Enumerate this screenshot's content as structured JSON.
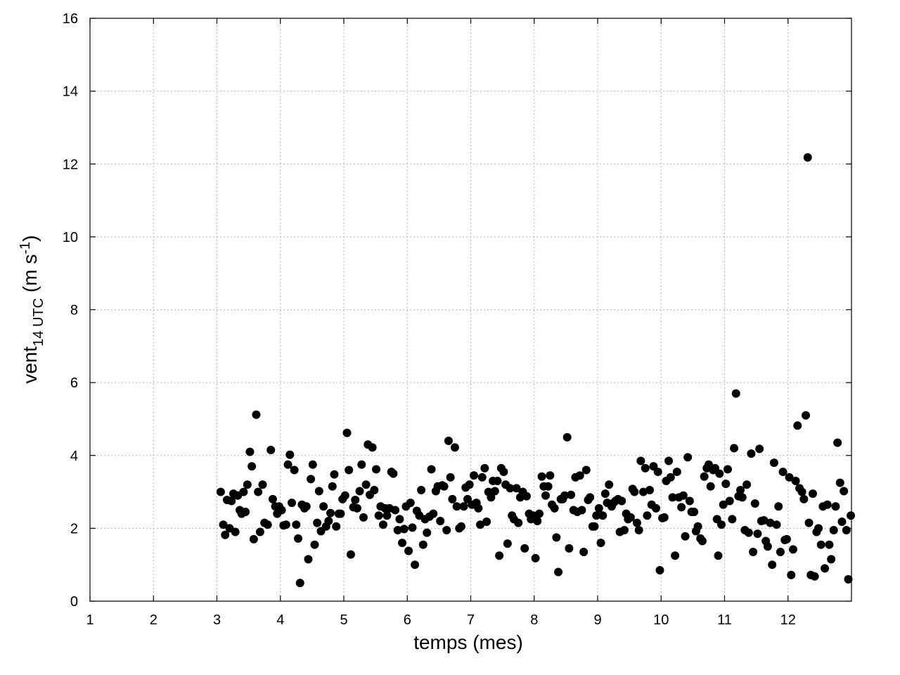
{
  "chart_data": {
    "type": "scatter",
    "xlabel": "temps (mes)",
    "ylabel": {
      "base": "vent",
      "subscript": "14 UTC",
      "unit_open": " (m s",
      "unit_sup": "-1",
      "unit_close": ")"
    },
    "xlim": [
      1,
      13
    ],
    "ylim": [
      0,
      16
    ],
    "xticks": [
      1,
      2,
      3,
      4,
      5,
      6,
      7,
      8,
      9,
      10,
      11,
      12
    ],
    "yticks": [
      0,
      2,
      4,
      6,
      8,
      10,
      12,
      14,
      16
    ],
    "grid": true,
    "marker_color": "#000000",
    "series": [
      {
        "points": [
          [
            3.06,
            3.0
          ],
          [
            3.1,
            2.1
          ],
          [
            3.13,
            1.82
          ],
          [
            3.16,
            2.78
          ],
          [
            3.2,
            2.0
          ],
          [
            3.23,
            2.75
          ],
          [
            3.26,
            2.95
          ],
          [
            3.29,
            1.9
          ],
          [
            3.33,
            2.9
          ],
          [
            3.36,
            2.5
          ],
          [
            3.39,
            2.4
          ],
          [
            3.42,
            3.0
          ],
          [
            3.45,
            2.45
          ],
          [
            3.48,
            3.2
          ],
          [
            3.52,
            4.1
          ],
          [
            3.55,
            3.7
          ],
          [
            3.58,
            1.7
          ],
          [
            3.62,
            5.12
          ],
          [
            3.65,
            3.0
          ],
          [
            3.68,
            1.9
          ],
          [
            3.72,
            3.2
          ],
          [
            3.75,
            2.15
          ],
          [
            3.8,
            2.1
          ],
          [
            3.85,
            4.15
          ],
          [
            3.88,
            2.8
          ],
          [
            3.92,
            2.6
          ],
          [
            3.95,
            2.4
          ],
          [
            3.98,
            2.6
          ],
          [
            4.02,
            2.5
          ],
          [
            4.05,
            2.08
          ],
          [
            4.09,
            2.1
          ],
          [
            4.12,
            3.75
          ],
          [
            4.15,
            4.02
          ],
          [
            4.18,
            2.7
          ],
          [
            4.22,
            3.6
          ],
          [
            4.25,
            2.1
          ],
          [
            4.28,
            1.72
          ],
          [
            4.31,
            0.5
          ],
          [
            4.34,
            2.65
          ],
          [
            4.38,
            2.55
          ],
          [
            4.41,
            2.6
          ],
          [
            4.44,
            1.15
          ],
          [
            4.48,
            3.35
          ],
          [
            4.51,
            3.75
          ],
          [
            4.54,
            1.55
          ],
          [
            4.58,
            2.15
          ],
          [
            4.61,
            3.02
          ],
          [
            4.64,
            1.92
          ],
          [
            4.68,
            2.6
          ],
          [
            4.72,
            2.05
          ],
          [
            4.76,
            2.2
          ],
          [
            4.79,
            2.42
          ],
          [
            4.82,
            3.15
          ],
          [
            4.85,
            3.48
          ],
          [
            4.88,
            2.05
          ],
          [
            4.92,
            2.4
          ],
          [
            4.95,
            2.4
          ],
          [
            4.98,
            2.8
          ],
          [
            5.02,
            2.9
          ],
          [
            5.05,
            4.62
          ],
          [
            5.08,
            3.6
          ],
          [
            5.11,
            1.28
          ],
          [
            5.15,
            2.58
          ],
          [
            5.18,
            2.78
          ],
          [
            5.21,
            2.55
          ],
          [
            5.25,
            3.02
          ],
          [
            5.28,
            3.75
          ],
          [
            5.31,
            2.3
          ],
          [
            5.35,
            3.2
          ],
          [
            5.38,
            4.3
          ],
          [
            5.41,
            2.92
          ],
          [
            5.45,
            4.22
          ],
          [
            5.48,
            3.05
          ],
          [
            5.51,
            3.62
          ],
          [
            5.55,
            2.35
          ],
          [
            5.58,
            2.6
          ],
          [
            5.62,
            2.1
          ],
          [
            5.65,
            2.55
          ],
          [
            5.68,
            2.35
          ],
          [
            5.72,
            2.55
          ],
          [
            5.75,
            3.55
          ],
          [
            5.78,
            3.5
          ],
          [
            5.81,
            2.5
          ],
          [
            5.85,
            1.95
          ],
          [
            5.88,
            2.25
          ],
          [
            5.92,
            1.6
          ],
          [
            5.95,
            1.98
          ],
          [
            5.98,
            2.6
          ],
          [
            6.02,
            1.38
          ],
          [
            6.05,
            2.7
          ],
          [
            6.08,
            2.02
          ],
          [
            6.12,
            1.0
          ],
          [
            6.15,
            2.48
          ],
          [
            6.19,
            2.35
          ],
          [
            6.22,
            3.05
          ],
          [
            6.25,
            1.55
          ],
          [
            6.28,
            2.25
          ],
          [
            6.31,
            1.88
          ],
          [
            6.35,
            2.32
          ],
          [
            6.38,
            3.62
          ],
          [
            6.41,
            2.4
          ],
          [
            6.45,
            3.02
          ],
          [
            6.48,
            3.15
          ],
          [
            6.52,
            2.2
          ],
          [
            6.55,
            3.18
          ],
          [
            6.58,
            3.15
          ],
          [
            6.62,
            1.95
          ],
          [
            6.65,
            4.4
          ],
          [
            6.68,
            3.4
          ],
          [
            6.71,
            2.8
          ],
          [
            6.75,
            4.22
          ],
          [
            6.78,
            2.6
          ],
          [
            6.82,
            2.0
          ],
          [
            6.85,
            2.05
          ],
          [
            6.89,
            2.6
          ],
          [
            6.92,
            3.12
          ],
          [
            6.95,
            2.8
          ],
          [
            6.98,
            3.2
          ],
          [
            7.02,
            2.65
          ],
          [
            7.05,
            3.45
          ],
          [
            7.09,
            2.7
          ],
          [
            7.12,
            2.55
          ],
          [
            7.15,
            2.1
          ],
          [
            7.18,
            3.4
          ],
          [
            7.22,
            3.65
          ],
          [
            7.25,
            2.18
          ],
          [
            7.28,
            3.0
          ],
          [
            7.32,
            2.85
          ],
          [
            7.35,
            3.3
          ],
          [
            7.38,
            3.02
          ],
          [
            7.42,
            3.3
          ],
          [
            7.45,
            1.25
          ],
          [
            7.48,
            3.65
          ],
          [
            7.52,
            3.55
          ],
          [
            7.55,
            3.2
          ],
          [
            7.58,
            1.58
          ],
          [
            7.62,
            3.1
          ],
          [
            7.65,
            2.35
          ],
          [
            7.68,
            2.25
          ],
          [
            7.72,
            3.1
          ],
          [
            7.75,
            2.15
          ],
          [
            7.78,
            2.85
          ],
          [
            7.82,
            3.0
          ],
          [
            7.85,
            1.45
          ],
          [
            7.88,
            2.88
          ],
          [
            7.92,
            2.4
          ],
          [
            7.95,
            2.25
          ],
          [
            7.98,
            2.35
          ],
          [
            8.02,
            1.18
          ],
          [
            8.05,
            2.2
          ],
          [
            8.08,
            2.4
          ],
          [
            8.12,
            3.42
          ],
          [
            8.15,
            3.15
          ],
          [
            8.18,
            2.9
          ],
          [
            8.22,
            3.15
          ],
          [
            8.25,
            3.45
          ],
          [
            8.28,
            2.65
          ],
          [
            8.32,
            2.55
          ],
          [
            8.35,
            1.75
          ],
          [
            8.38,
            0.8
          ],
          [
            8.42,
            2.8
          ],
          [
            8.45,
            2.8
          ],
          [
            8.48,
            2.9
          ],
          [
            8.52,
            4.5
          ],
          [
            8.55,
            1.45
          ],
          [
            8.58,
            2.92
          ],
          [
            8.62,
            2.5
          ],
          [
            8.65,
            3.4
          ],
          [
            8.68,
            2.45
          ],
          [
            8.72,
            3.45
          ],
          [
            8.75,
            2.5
          ],
          [
            8.78,
            1.35
          ],
          [
            8.82,
            3.6
          ],
          [
            8.85,
            2.78
          ],
          [
            8.88,
            2.85
          ],
          [
            8.92,
            2.05
          ],
          [
            8.95,
            2.05
          ],
          [
            8.98,
            2.35
          ],
          [
            9.02,
            2.55
          ],
          [
            9.05,
            1.6
          ],
          [
            9.08,
            2.35
          ],
          [
            9.12,
            2.95
          ],
          [
            9.15,
            2.7
          ],
          [
            9.18,
            3.2
          ],
          [
            9.22,
            2.6
          ],
          [
            9.25,
            2.7
          ],
          [
            9.28,
            2.75
          ],
          [
            9.32,
            2.8
          ],
          [
            9.35,
            1.9
          ],
          [
            9.38,
            2.75
          ],
          [
            9.42,
            1.95
          ],
          [
            9.45,
            2.4
          ],
          [
            9.48,
            2.25
          ],
          [
            9.52,
            2.3
          ],
          [
            9.55,
            3.08
          ],
          [
            9.58,
            3.0
          ],
          [
            9.62,
            2.15
          ],
          [
            9.65,
            1.95
          ],
          [
            9.68,
            3.85
          ],
          [
            9.72,
            3.0
          ],
          [
            9.75,
            3.65
          ],
          [
            9.78,
            2.35
          ],
          [
            9.82,
            3.05
          ],
          [
            9.85,
            2.65
          ],
          [
            9.88,
            3.7
          ],
          [
            9.92,
            2.55
          ],
          [
            9.95,
            3.55
          ],
          [
            9.98,
            0.85
          ],
          [
            10.02,
            2.28
          ],
          [
            10.05,
            2.3
          ],
          [
            10.08,
            3.3
          ],
          [
            10.12,
            3.85
          ],
          [
            10.15,
            3.4
          ],
          [
            10.18,
            2.85
          ],
          [
            10.22,
            1.25
          ],
          [
            10.25,
            3.55
          ],
          [
            10.28,
            2.85
          ],
          [
            10.32,
            2.58
          ],
          [
            10.35,
            2.9
          ],
          [
            10.38,
            1.78
          ],
          [
            10.42,
            3.95
          ],
          [
            10.45,
            2.75
          ],
          [
            10.48,
            2.45
          ],
          [
            10.52,
            2.45
          ],
          [
            10.55,
            1.92
          ],
          [
            10.58,
            2.05
          ],
          [
            10.62,
            1.72
          ],
          [
            10.65,
            1.65
          ],
          [
            10.68,
            3.42
          ],
          [
            10.72,
            3.65
          ],
          [
            10.75,
            3.75
          ],
          [
            10.78,
            3.15
          ],
          [
            10.82,
            3.6
          ],
          [
            10.85,
            3.65
          ],
          [
            10.88,
            2.25
          ],
          [
            10.9,
            1.25
          ],
          [
            10.92,
            3.5
          ],
          [
            10.95,
            2.1
          ],
          [
            10.98,
            2.65
          ],
          [
            11.02,
            3.22
          ],
          [
            11.05,
            3.62
          ],
          [
            11.08,
            2.75
          ],
          [
            11.12,
            2.25
          ],
          [
            11.15,
            4.2
          ],
          [
            11.18,
            5.7
          ],
          [
            11.22,
            2.88
          ],
          [
            11.25,
            3.05
          ],
          [
            11.28,
            2.85
          ],
          [
            11.32,
            1.95
          ],
          [
            11.35,
            3.2
          ],
          [
            11.38,
            1.88
          ],
          [
            11.42,
            4.05
          ],
          [
            11.45,
            1.35
          ],
          [
            11.48,
            2.68
          ],
          [
            11.52,
            1.85
          ],
          [
            11.55,
            4.18
          ],
          [
            11.58,
            2.2
          ],
          [
            11.62,
            2.22
          ],
          [
            11.65,
            1.65
          ],
          [
            11.68,
            1.5
          ],
          [
            11.72,
            2.15
          ],
          [
            11.75,
            1.0
          ],
          [
            11.78,
            3.8
          ],
          [
            11.82,
            2.1
          ],
          [
            11.85,
            2.6
          ],
          [
            11.88,
            1.35
          ],
          [
            11.92,
            3.55
          ],
          [
            11.95,
            1.68
          ],
          [
            11.98,
            1.7
          ],
          [
            12.02,
            3.4
          ],
          [
            12.05,
            0.72
          ],
          [
            12.08,
            1.42
          ],
          [
            12.12,
            3.3
          ],
          [
            12.15,
            4.82
          ],
          [
            12.18,
            3.1
          ],
          [
            12.22,
            3.0
          ],
          [
            12.25,
            2.8
          ],
          [
            12.28,
            5.1
          ],
          [
            12.31,
            12.18
          ],
          [
            12.33,
            2.15
          ],
          [
            12.36,
            0.72
          ],
          [
            12.39,
            2.95
          ],
          [
            12.42,
            0.68
          ],
          [
            12.45,
            1.9
          ],
          [
            12.48,
            2.0
          ],
          [
            12.52,
            1.55
          ],
          [
            12.55,
            2.6
          ],
          [
            12.58,
            0.9
          ],
          [
            12.62,
            2.65
          ],
          [
            12.65,
            1.55
          ],
          [
            12.68,
            1.15
          ],
          [
            12.72,
            1.95
          ],
          [
            12.75,
            2.6
          ],
          [
            12.78,
            4.35
          ],
          [
            12.82,
            3.25
          ],
          [
            12.85,
            2.18
          ],
          [
            12.88,
            3.02
          ],
          [
            12.92,
            1.95
          ],
          [
            12.95,
            0.6
          ],
          [
            12.99,
            2.35
          ]
        ]
      }
    ]
  }
}
